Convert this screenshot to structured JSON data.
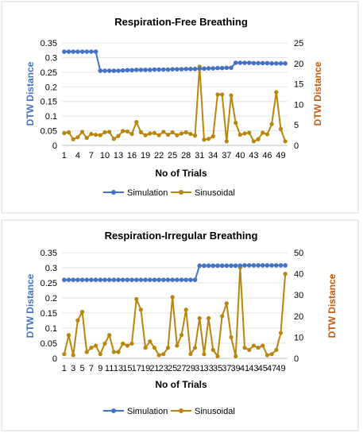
{
  "colors": {
    "simulation": "#4472C4",
    "sinusoidal": "#B8860B",
    "sinusoidal_axis": "#C55A11"
  },
  "chart_data": [
    {
      "type": "line",
      "title": "Respiration-Free Breathing",
      "xlabel": "No of Trials",
      "ylabel": "DTW Distance",
      "y2label": "DTW Distance",
      "ylim": [
        0,
        0.35
      ],
      "y2lim": [
        0,
        25
      ],
      "yticks": [
        "0",
        "0.05",
        "0.1",
        "0.15",
        "0.2",
        "0.25",
        "0.3",
        "0.35"
      ],
      "y2ticks": [
        "0",
        "5",
        "10",
        "15",
        "20",
        "25"
      ],
      "xtick_labels": [
        "1",
        "4",
        "7",
        "10",
        "13",
        "16",
        "19",
        "22",
        "25",
        "28",
        "31",
        "34",
        "37",
        "40",
        "43",
        "46",
        "49"
      ],
      "legend_position": "bottom",
      "x": [
        1,
        2,
        3,
        4,
        5,
        6,
        7,
        8,
        9,
        10,
        11,
        12,
        13,
        14,
        15,
        16,
        17,
        18,
        19,
        20,
        21,
        22,
        23,
        24,
        25,
        26,
        27,
        28,
        29,
        30,
        31,
        32,
        33,
        34,
        35,
        36,
        37,
        38,
        39,
        40,
        41,
        42,
        43,
        44,
        45,
        46,
        47,
        48,
        49,
        50
      ],
      "series": [
        {
          "name": "Simulation",
          "axis": "left",
          "values": [
            0.32,
            0.32,
            0.32,
            0.32,
            0.32,
            0.32,
            0.32,
            0.32,
            0.255,
            0.255,
            0.255,
            0.255,
            0.255,
            0.256,
            0.257,
            0.257,
            0.258,
            0.258,
            0.258,
            0.258,
            0.259,
            0.259,
            0.259,
            0.259,
            0.26,
            0.26,
            0.26,
            0.261,
            0.261,
            0.261,
            0.262,
            0.262,
            0.263,
            0.263,
            0.264,
            0.264,
            0.265,
            0.265,
            0.282,
            0.282,
            0.282,
            0.282,
            0.281,
            0.281,
            0.281,
            0.281,
            0.28,
            0.28,
            0.28,
            0.28
          ]
        },
        {
          "name": "Sinusoidal",
          "axis": "right",
          "values": [
            3,
            3.2,
            1.5,
            2,
            3.3,
            1.8,
            2.8,
            2.6,
            2.5,
            3.2,
            3.3,
            1.6,
            2.3,
            3.5,
            3.4,
            2.8,
            5.7,
            3.2,
            2.5,
            2.9,
            3,
            2.5,
            3.3,
            2.6,
            3.2,
            2.5,
            2.9,
            3.2,
            2.8,
            2.4,
            19.2,
            1.4,
            1.6,
            2.2,
            12.4,
            12.4,
            1,
            12.2,
            5.5,
            2.6,
            2.9,
            3.1,
            1,
            1.5,
            3.1,
            2.7,
            5.2,
            13,
            4,
            1
          ]
        }
      ]
    },
    {
      "type": "line",
      "title": "Respiration-Irregular Breathing",
      "xlabel": "No of Trials",
      "ylabel": "DTW Distance",
      "y2label": "DTW Distance",
      "ylim": [
        0,
        0.35
      ],
      "y2lim": [
        0,
        50
      ],
      "yticks": [
        "0",
        "0.05",
        "0.1",
        "0.15",
        "0.2",
        "0.25",
        "0.3",
        "0.35"
      ],
      "y2ticks": [
        "0",
        "10",
        "20",
        "30",
        "40",
        "50"
      ],
      "xtick_labels": [
        "1",
        "3",
        "5",
        "7",
        "9",
        "11",
        "13",
        "15",
        "17",
        "19",
        "21",
        "23",
        "25",
        "27",
        "29",
        "31",
        "33",
        "35",
        "37",
        "39",
        "41",
        "43",
        "45",
        "47",
        "49"
      ],
      "legend_position": "bottom",
      "x": [
        1,
        2,
        3,
        4,
        5,
        6,
        7,
        8,
        9,
        10,
        11,
        12,
        13,
        14,
        15,
        16,
        17,
        18,
        19,
        20,
        21,
        22,
        23,
        24,
        25,
        26,
        27,
        28,
        29,
        30,
        31,
        32,
        33,
        34,
        35,
        36,
        37,
        38,
        39,
        40,
        41,
        42,
        43,
        44,
        45,
        46,
        47,
        48,
        49,
        50
      ],
      "series": [
        {
          "name": "Simulation",
          "axis": "left",
          "values": [
            0.26,
            0.26,
            0.26,
            0.26,
            0.26,
            0.26,
            0.26,
            0.26,
            0.26,
            0.26,
            0.26,
            0.26,
            0.26,
            0.26,
            0.26,
            0.26,
            0.26,
            0.26,
            0.26,
            0.26,
            0.26,
            0.26,
            0.26,
            0.26,
            0.26,
            0.26,
            0.26,
            0.26,
            0.26,
            0.26,
            0.307,
            0.307,
            0.307,
            0.307,
            0.307,
            0.307,
            0.307,
            0.307,
            0.307,
            0.307,
            0.308,
            0.308,
            0.308,
            0.308,
            0.308,
            0.308,
            0.308,
            0.308,
            0.308,
            0.308
          ]
        },
        {
          "name": "Sinusoidal",
          "axis": "right",
          "values": [
            2,
            11,
            1.5,
            18,
            22,
            3,
            5,
            6,
            2,
            7,
            11,
            3,
            3,
            7,
            6,
            7,
            28,
            23,
            5,
            8,
            5,
            1.5,
            2,
            5,
            29,
            6,
            11,
            23,
            2,
            5,
            19,
            2,
            19,
            4,
            1,
            20,
            26,
            10,
            1,
            43,
            5,
            4,
            6,
            5,
            6,
            1.5,
            2,
            4,
            12,
            40
          ]
        }
      ]
    }
  ]
}
